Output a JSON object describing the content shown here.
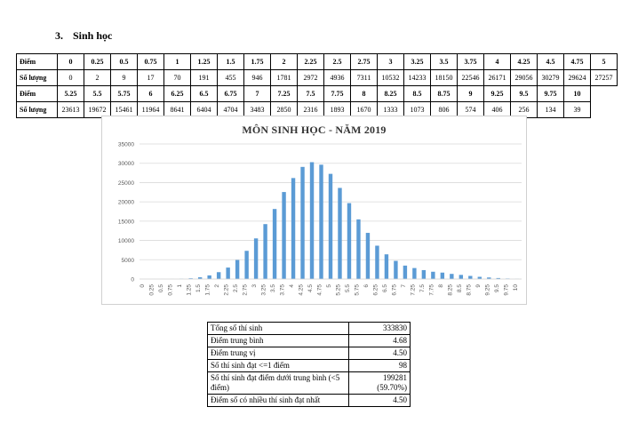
{
  "section": {
    "number": "3.",
    "title": "Sinh học"
  },
  "freq_table": {
    "score_label": "Điểm",
    "count_label": "Số lượng",
    "row1_scores": [
      "0",
      "0.25",
      "0.5",
      "0.75",
      "1",
      "1.25",
      "1.5",
      "1.75",
      "2",
      "2.25",
      "2.5",
      "2.75",
      "3",
      "3.25",
      "3.5",
      "3.75",
      "4",
      "4.25",
      "4.5",
      "4.75",
      "5"
    ],
    "row1_counts": [
      "0",
      "2",
      "9",
      "17",
      "70",
      "191",
      "455",
      "946",
      "1781",
      "2972",
      "4936",
      "7311",
      "10532",
      "14233",
      "18150",
      "22546",
      "26171",
      "29056",
      "30279",
      "29624",
      "27257"
    ],
    "row2_scores": [
      "5.25",
      "5.5",
      "5.75",
      "6",
      "6.25",
      "6.5",
      "6.75",
      "7",
      "7.25",
      "7.5",
      "7.75",
      "8",
      "8.25",
      "8.5",
      "8.75",
      "9",
      "9.25",
      "9.5",
      "9.75",
      "10"
    ],
    "row2_counts": [
      "23613",
      "19672",
      "15461",
      "11964",
      "8641",
      "6404",
      "4704",
      "3483",
      "2850",
      "2316",
      "1893",
      "1670",
      "1333",
      "1073",
      "806",
      "574",
      "406",
      "256",
      "134",
      "39"
    ]
  },
  "chart_data": {
    "type": "bar",
    "title": "MÔN SINH HỌC - NĂM 2019",
    "categories": [
      "0",
      "0.25",
      "0.5",
      "0.75",
      "1",
      "1.25",
      "1.5",
      "1.75",
      "2",
      "2.25",
      "2.5",
      "2.75",
      "3",
      "3.25",
      "3.5",
      "3.75",
      "4",
      "4.25",
      "4.5",
      "4.75",
      "5",
      "5.25",
      "5.5",
      "5.75",
      "6",
      "6.25",
      "6.5",
      "6.75",
      "7",
      "7.25",
      "7.5",
      "7.75",
      "8",
      "8.25",
      "8.5",
      "8.75",
      "9",
      "9.25",
      "9.5",
      "9.75",
      "10"
    ],
    "values": [
      0,
      2,
      9,
      17,
      70,
      191,
      455,
      946,
      1781,
      2972,
      4936,
      7311,
      10532,
      14233,
      18150,
      22546,
      26171,
      29056,
      30279,
      29624,
      27257,
      23613,
      19672,
      15461,
      11964,
      8641,
      6404,
      4704,
      3483,
      2850,
      2316,
      1893,
      1670,
      1333,
      1073,
      806,
      574,
      406,
      256,
      134,
      39
    ],
    "ylim": [
      0,
      35000
    ],
    "yticks": [
      "0",
      "5000",
      "10000",
      "15000",
      "20000",
      "25000",
      "30000",
      "35000"
    ],
    "grid": true,
    "bar_color": "#5b9bd5"
  },
  "stats": [
    {
      "label": "Tổng số thí sinh",
      "value": "333830"
    },
    {
      "label": "Điểm trung bình",
      "value": "4.68"
    },
    {
      "label": "Điểm trung vị",
      "value": "4.50"
    },
    {
      "label": "Số thí sinh đạt <=1 điểm",
      "value": "98"
    },
    {
      "label": "Số thí sinh đạt điểm dưới trung bình (<5 điểm)",
      "value": "199281 (59.70%)"
    },
    {
      "label": "Điểm số có nhiều thí sinh đạt nhất",
      "value": "4.50"
    }
  ]
}
